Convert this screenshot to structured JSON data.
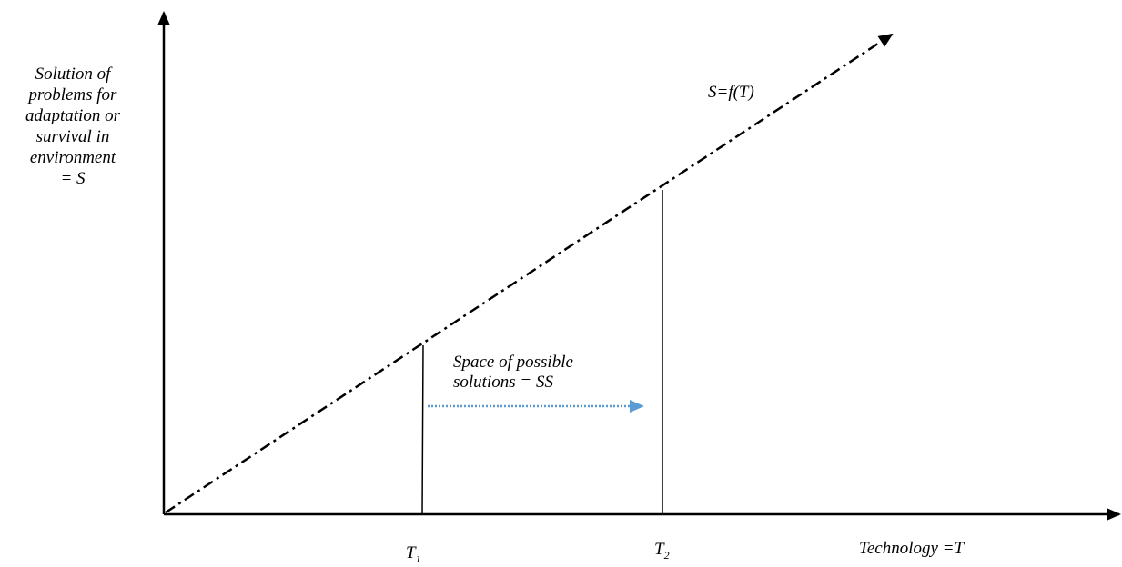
{
  "y_axis_label_lines": [
    "Solution of",
    "problems for",
    "adaptation or",
    "survival in",
    "environment",
    "= S"
  ],
  "x_axis_label": "Technology =T",
  "curve_label": "S=f(T)",
  "t1_label": {
    "base": "T",
    "sub": "1"
  },
  "t2_label": {
    "base": "T",
    "sub": "2"
  },
  "space_label_lines": [
    "Space of possible",
    "solutions = SS"
  ],
  "colors": {
    "axes": "#000000",
    "curve": "#000000",
    "arrow": "#5b9bd5"
  }
}
